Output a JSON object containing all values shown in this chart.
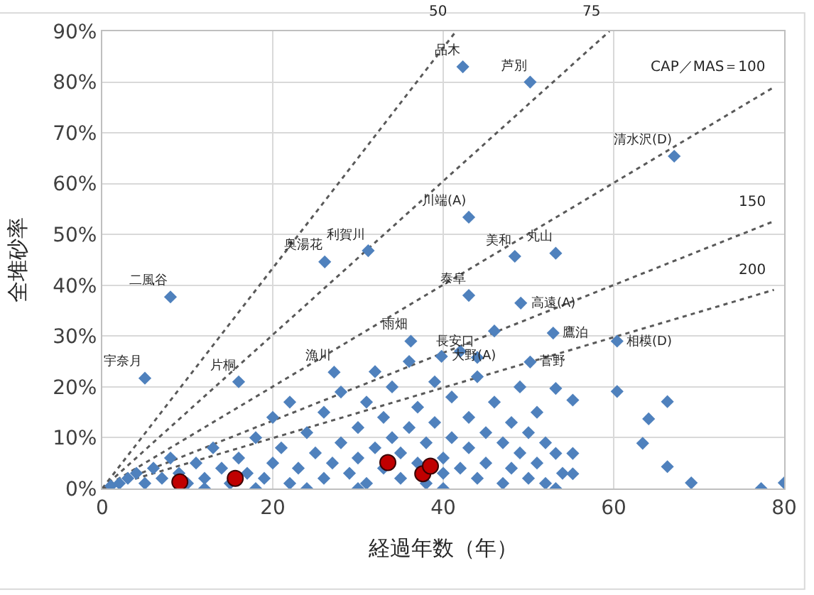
{
  "chart_data": {
    "type": "scatter",
    "xlabel": "経過年数（年）",
    "ylabel": "全堆砂率",
    "xlim": [
      0,
      80
    ],
    "xticks": [
      0,
      20,
      40,
      60,
      80
    ],
    "ylim": [
      0,
      90
    ],
    "yticks": [
      {
        "value": 0,
        "label": "0%"
      },
      {
        "value": 10,
        "label": "10%"
      },
      {
        "value": 20,
        "label": "20%"
      },
      {
        "value": 30,
        "label": "30%"
      },
      {
        "value": 40,
        "label": "40%"
      },
      {
        "value": 50,
        "label": "50%"
      },
      {
        "value": 60,
        "label": "60%"
      },
      {
        "value": 70,
        "label": "70%"
      },
      {
        "value": 80,
        "label": "80%"
      },
      {
        "value": 90,
        "label": "90%"
      }
    ],
    "grid": true,
    "legend": false,
    "series": [
      {
        "type": "line",
        "name": "50",
        "color": "#595959",
        "line_style": "dotted",
        "marker": "none",
        "x": [
          0,
          41.5
        ],
        "values": [
          0,
          90
        ]
      },
      {
        "type": "line",
        "name": "75",
        "color": "#595959",
        "line_style": "dotted",
        "marker": "none",
        "x": [
          0,
          59.5
        ],
        "values": [
          0,
          90
        ]
      },
      {
        "type": "line",
        "name": "CAP／MAS＝100",
        "color": "#595959",
        "line_style": "dotted",
        "marker": "none",
        "x": [
          0,
          78.8
        ],
        "values": [
          0,
          79
        ]
      },
      {
        "type": "line",
        "name": "150",
        "color": "#595959",
        "line_style": "dotted",
        "marker": "none",
        "x": [
          0,
          78.8
        ],
        "values": [
          0,
          52.6
        ]
      },
      {
        "type": "line",
        "name": "200",
        "color": "#595959",
        "line_style": "dotted",
        "marker": "none",
        "x": [
          0,
          78.8
        ],
        "values": [
          0,
          39.1
        ]
      },
      {
        "color": "#4f81bd",
        "marker": "diamond",
        "x": [
          42.3,
          50.2,
          67.1,
          43,
          48.4,
          53.2,
          26.1,
          31.2,
          8,
          5,
          16,
          27.2,
          36.2,
          39.8,
          43,
          49.1,
          44,
          52.9,
          50.2,
          60.4,
          53.2,
          55.2,
          60.4,
          66.3,
          64.1,
          63.4,
          66.3,
          69.1,
          77.3,
          80,
          55.2,
          55.2,
          53.2,
          53.2,
          1,
          2,
          3,
          4,
          5,
          6,
          7,
          8,
          9,
          10,
          11,
          12,
          13,
          14,
          15,
          16,
          17,
          18,
          19,
          20,
          20,
          21,
          22,
          22,
          23,
          24,
          25,
          26,
          26,
          27,
          28,
          28,
          29,
          30,
          30,
          31,
          31,
          32,
          32,
          33,
          33,
          34,
          34,
          35,
          35,
          36,
          36,
          37,
          37,
          38,
          38,
          39,
          39,
          40,
          40,
          41,
          41,
          42,
          42,
          43,
          43,
          44,
          44,
          45,
          45,
          46,
          46,
          47,
          47,
          48,
          48,
          49,
          49,
          50,
          50,
          51,
          51,
          52,
          52,
          54,
          24,
          12,
          40,
          30,
          18
        ],
        "values": [
          83,
          80,
          65.4,
          53.4,
          45.7,
          46.3,
          44.6,
          46.8,
          37.7,
          21.7,
          21,
          22.9,
          29,
          26,
          38,
          36.5,
          25.8,
          30.6,
          24.9,
          29,
          19.7,
          17.4,
          19.1,
          17.1,
          13.7,
          8.9,
          4.3,
          1.1,
          0,
          1.1,
          6.9,
          2.9,
          6.9,
          0,
          0.5,
          1,
          2,
          3,
          1,
          4,
          2,
          6,
          3,
          1,
          5,
          2,
          8,
          4,
          1,
          6,
          3,
          10,
          2,
          5,
          14,
          8,
          1,
          17,
          4,
          11,
          7,
          2,
          15,
          5,
          9,
          19,
          3,
          12,
          6,
          1,
          17,
          8,
          23,
          4,
          14,
          10,
          20,
          2,
          7,
          12,
          25,
          5,
          16,
          9,
          1,
          21,
          13,
          6,
          3,
          18,
          10,
          27,
          4,
          14,
          8,
          2,
          22,
          11,
          5,
          17,
          31,
          9,
          1,
          13,
          4,
          20,
          7,
          11,
          2,
          15,
          5,
          9,
          1,
          3,
          0,
          0,
          0,
          0,
          0
        ]
      },
      {
        "color": "#c00000",
        "marker": "circle",
        "x": [
          9.1,
          15.6,
          33.5,
          37.6,
          38.5
        ],
        "values": [
          1.3,
          2,
          5.1,
          2.9,
          4.4
        ]
      }
    ],
    "annotations": [
      {
        "text": "品木",
        "x": 42.3,
        "y": 83
      },
      {
        "text": "芦別",
        "x": 50.2,
        "y": 80
      },
      {
        "text": "清水沢(D)",
        "x": 67.1,
        "y": 65.4
      },
      {
        "text": "川端(A)",
        "x": 43,
        "y": 53.4
      },
      {
        "text": "美和",
        "x": 48.4,
        "y": 45.7
      },
      {
        "text": "丸山",
        "x": 53.2,
        "y": 46.3
      },
      {
        "text": "奥湯花",
        "x": 26.1,
        "y": 44.6
      },
      {
        "text": "利賀川",
        "x": 31.2,
        "y": 46.8
      },
      {
        "text": "二風谷",
        "x": 8,
        "y": 37.7
      },
      {
        "text": "宇奈月",
        "x": 5,
        "y": 21.7
      },
      {
        "text": "片桐",
        "x": 16,
        "y": 21
      },
      {
        "text": "漁川",
        "x": 27.2,
        "y": 22.9
      },
      {
        "text": "雨畑",
        "x": 36.2,
        "y": 29
      },
      {
        "text": "大野(A)",
        "x": 39.8,
        "y": 26
      },
      {
        "text": "泰阜",
        "x": 43,
        "y": 38
      },
      {
        "text": "高遠(A)",
        "x": 49.1,
        "y": 36.5
      },
      {
        "text": "長安口",
        "x": 44,
        "y": 25.8
      },
      {
        "text": "鷹泊",
        "x": 52.9,
        "y": 30.6
      },
      {
        "text": "菅野",
        "x": 50.2,
        "y": 24.9
      },
      {
        "text": "相模(D)",
        "x": 60.4,
        "y": 29
      }
    ]
  }
}
